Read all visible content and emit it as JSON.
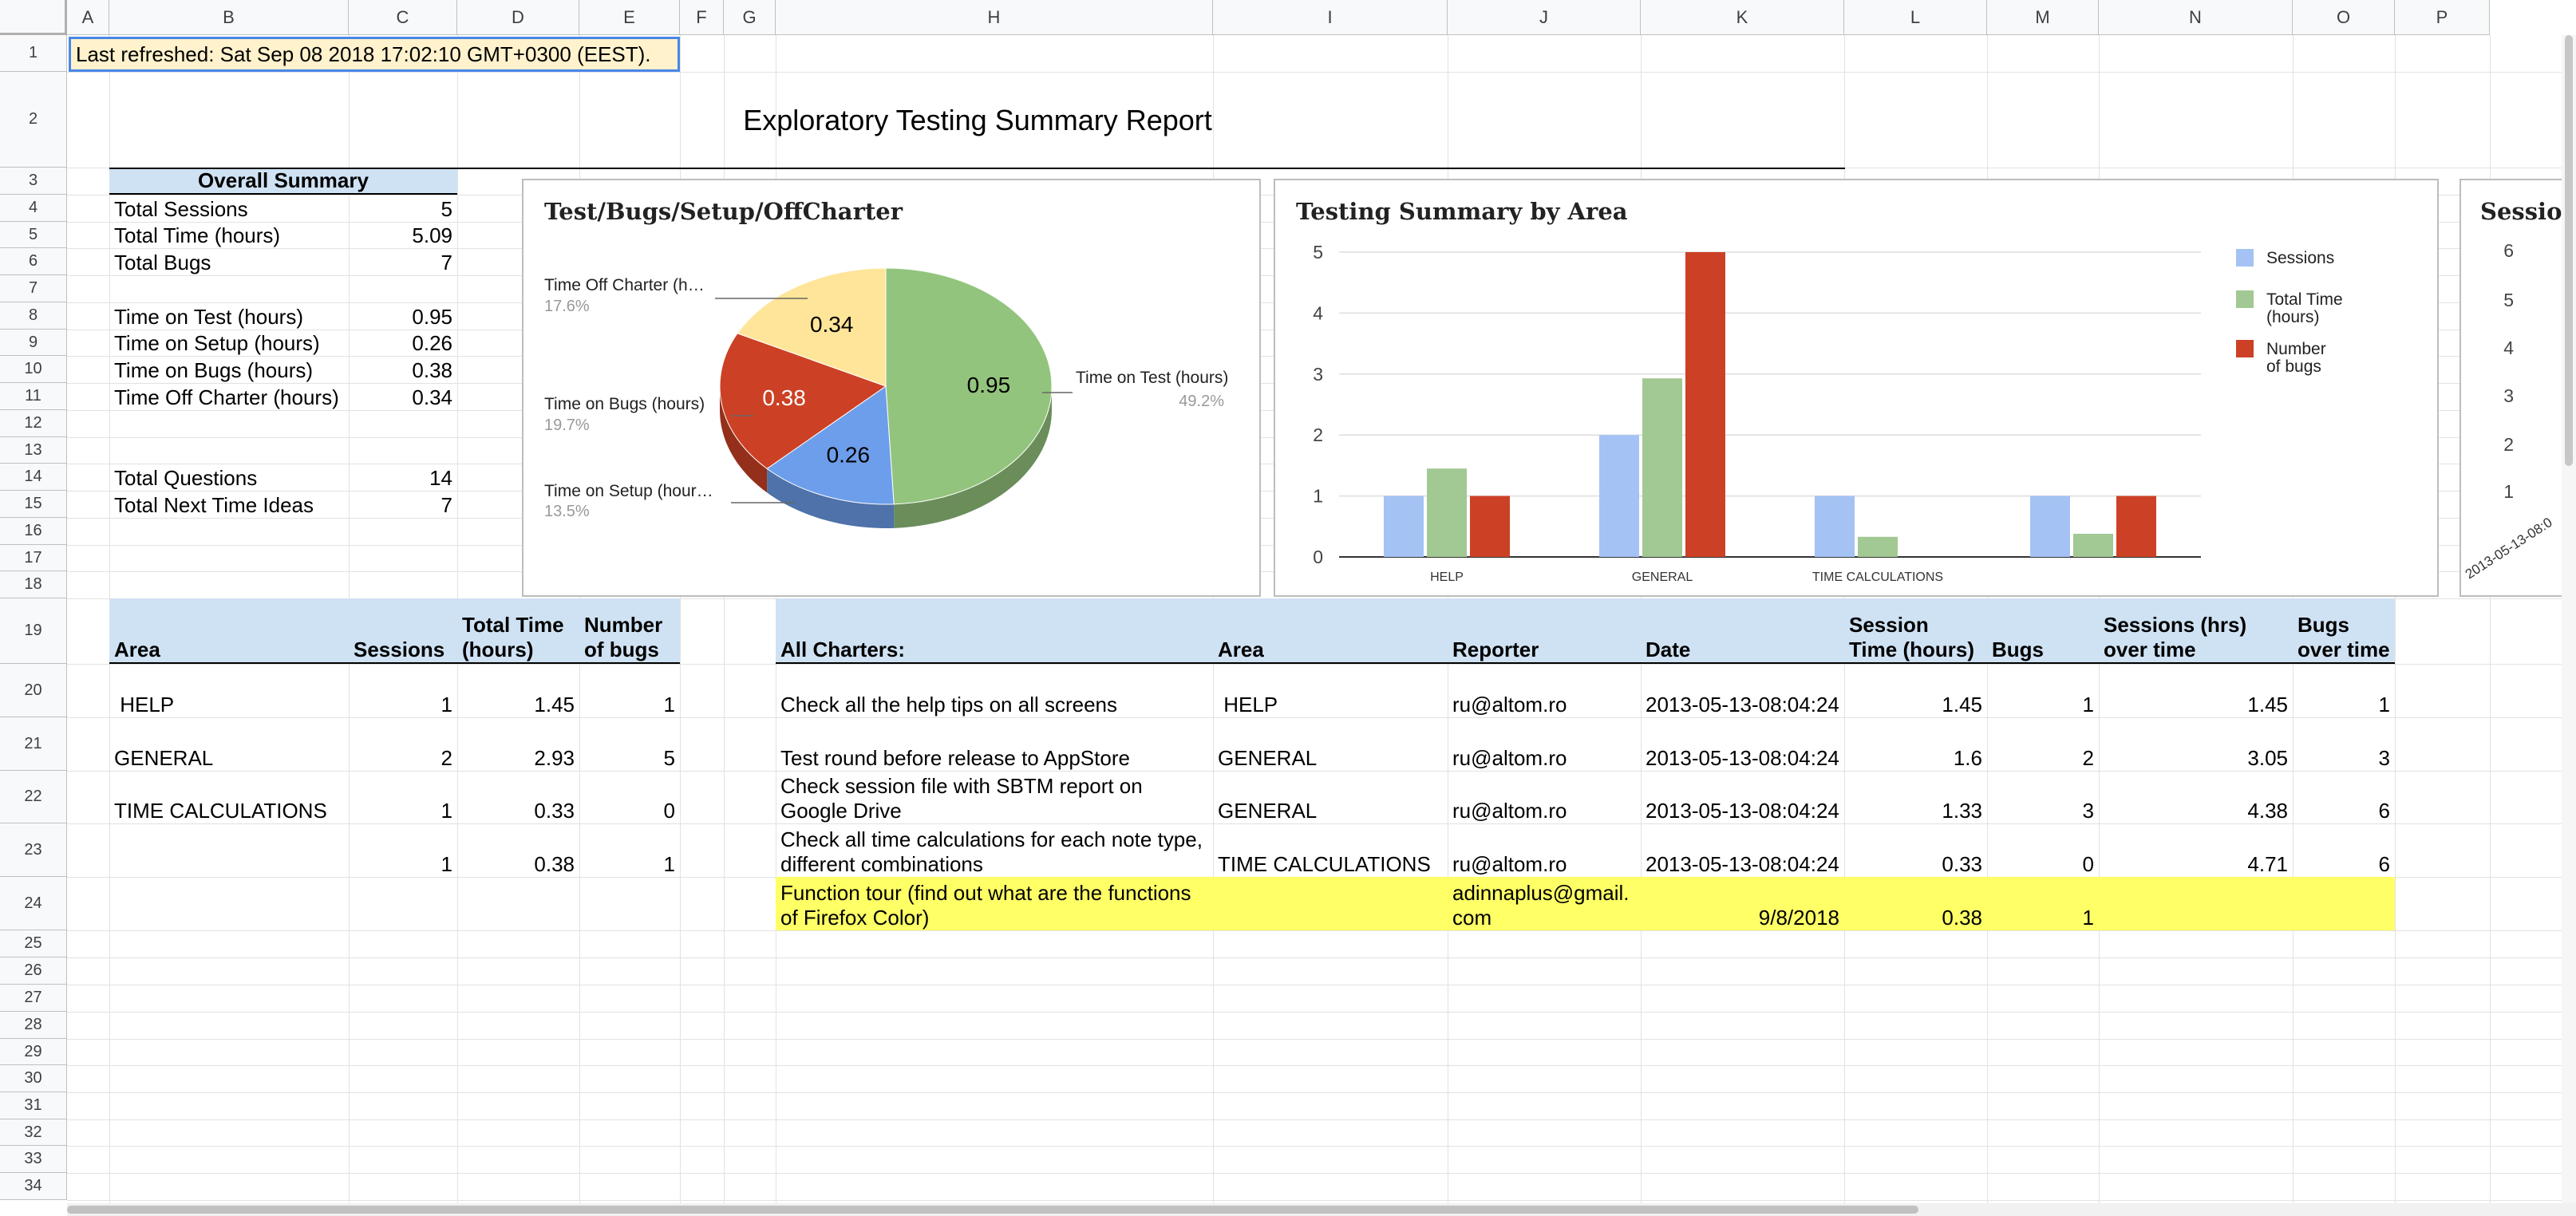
{
  "columns": [
    "A",
    "B",
    "C",
    "D",
    "E",
    "F",
    "G",
    "H",
    "I",
    "J",
    "K",
    "L",
    "M",
    "N",
    "O",
    "P"
  ],
  "rows": [
    "1",
    "2",
    "3",
    "4",
    "5",
    "6",
    "7",
    "8",
    "9",
    "10",
    "11",
    "12",
    "13",
    "14",
    "15",
    "16",
    "17",
    "18",
    "19",
    "20",
    "21",
    "22",
    "23",
    "24",
    "25",
    "26",
    "27",
    "28",
    "29",
    "30",
    "31",
    "32",
    "33",
    "34"
  ],
  "last_refreshed": "Last refreshed: Sat Sep 08 2018 17:02:10 GMT+0300 (EEST).",
  "report_title": "Exploratory Testing Summary Report",
  "overall_summary": {
    "header": "Overall Summary",
    "rows": [
      {
        "label": "Total Sessions",
        "value": "5"
      },
      {
        "label": "Total Time (hours)",
        "value": "5.09"
      },
      {
        "label": "Total Bugs",
        "value": "7"
      },
      {
        "label": "Time on Test (hours)",
        "value": "0.95"
      },
      {
        "label": "Time on Setup (hours)",
        "value": "0.26"
      },
      {
        "label": "Time on Bugs (hours)",
        "value": "0.38"
      },
      {
        "label": "Time Off Charter (hours)",
        "value": "0.34"
      },
      {
        "label": "Total Questions",
        "value": "14"
      },
      {
        "label": "Total Next Time Ideas",
        "value": "7"
      }
    ]
  },
  "area_table": {
    "headers": [
      "Area",
      "Sessions",
      "Total Time (hours)",
      "Number of bugs"
    ],
    "rows": [
      [
        " HELP",
        "1",
        "1.45",
        "1"
      ],
      [
        "GENERAL",
        "2",
        "2.93",
        "5"
      ],
      [
        "TIME CALCULATIONS",
        "1",
        "0.33",
        "0"
      ],
      [
        "",
        "1",
        "0.38",
        "1"
      ]
    ]
  },
  "charters_table": {
    "headers": [
      "All Charters:",
      "Area",
      "Reporter",
      "Date",
      "Session Time (hours)",
      "Bugs",
      "Sessions (hrs) over time",
      "Bugs over time"
    ],
    "rows": [
      [
        "Check all the help tips on all screens",
        " HELP",
        "ru@altom.ro",
        "2013-05-13-08:04:24",
        "1.45",
        "1",
        "1.45",
        "1"
      ],
      [
        "Test round before release to AppStore",
        "GENERAL",
        "ru@altom.ro",
        "2013-05-13-08:04:24",
        "1.6",
        "2",
        "3.05",
        "3"
      ],
      [
        "Check session file with SBTM report on Google Drive",
        "GENERAL",
        "ru@altom.ro",
        "2013-05-13-08:04:24",
        "1.33",
        "3",
        "4.38",
        "6"
      ],
      [
        "Check all time calculations for each note type, different combinations",
        "TIME CALCULATIONS",
        "ru@altom.ro",
        "2013-05-13-08:04:24",
        "0.33",
        "0",
        "4.71",
        "6"
      ],
      [
        "Function tour (find out what are the functions of Firefox Color)",
        "",
        "adinnaplus@gmail.com",
        "9/8/2018",
        "0.38",
        "1",
        "",
        ""
      ]
    ]
  },
  "chart_data": [
    {
      "type": "pie",
      "title": "Test/Bugs/Setup/OffCharter",
      "slices": [
        {
          "label": "Time on Test (hours)",
          "value": 0.95,
          "percent": "49.2%",
          "color": "#93c47d"
        },
        {
          "label": "Time on Setup (hour…",
          "value": 0.26,
          "percent": "13.5%",
          "color": "#6d9eeb"
        },
        {
          "label": "Time on Bugs (hours)",
          "value": 0.38,
          "percent": "19.7%",
          "color": "#cc4125"
        },
        {
          "label": "Time Off Charter (h…",
          "value": 0.34,
          "percent": "17.6%",
          "color": "#ffe599"
        }
      ]
    },
    {
      "type": "bar",
      "title": "Testing Summary by Area",
      "categories": [
        "HELP",
        "GENERAL",
        "TIME CALCULATIONS",
        ""
      ],
      "series": [
        {
          "name": "Sessions",
          "values": [
            1,
            2,
            1,
            1
          ],
          "color": "#a4c2f4"
        },
        {
          "name": "Total Time (hours)",
          "values": [
            1.45,
            2.93,
            0.33,
            0.38
          ],
          "color": "#a2c893"
        },
        {
          "name": "Number of bugs",
          "values": [
            1,
            5,
            0,
            1
          ],
          "color": "#cc4125"
        }
      ],
      "ylim": [
        0,
        5
      ],
      "yticks": [
        "0",
        "1",
        "2",
        "3",
        "4",
        "5"
      ],
      "legend": "right"
    },
    {
      "type": "line",
      "title": "Sessions",
      "yticks": [
        "1",
        "2",
        "3",
        "4",
        "5",
        "6"
      ],
      "xtick": "2013-05-13-08:0"
    }
  ]
}
